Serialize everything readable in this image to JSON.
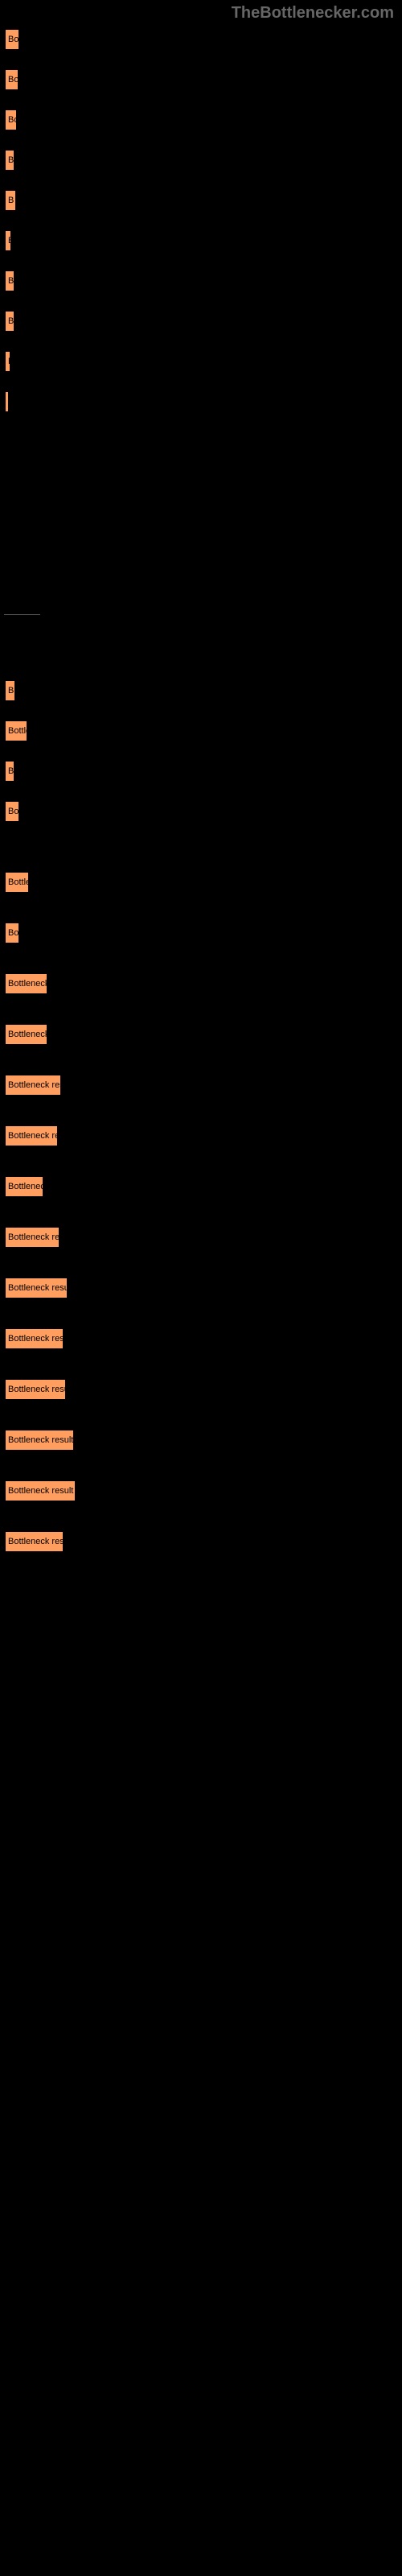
{
  "watermark": "TheBottlenecker.com",
  "section1": {
    "bars": [
      {
        "label": "Bo",
        "width": 20
      },
      {
        "label": "Bo",
        "width": 19
      },
      {
        "label": "Bo",
        "width": 17
      },
      {
        "label": "B",
        "width": 14
      },
      {
        "label": "B",
        "width": 16
      },
      {
        "label": "B",
        "width": 10
      },
      {
        "label": "B",
        "width": 14
      },
      {
        "label": "B",
        "width": 14
      },
      {
        "label": "B",
        "width": 9
      },
      {
        "label": "",
        "width": 7
      }
    ],
    "bar_color": "#ff9e5e",
    "border_color": "#000000"
  },
  "section2": {
    "bars": [
      {
        "label": "B",
        "width": 15
      },
      {
        "label": "Bottle",
        "width": 30
      },
      {
        "label": "B",
        "width": 14
      },
      {
        "label": "Bo",
        "width": 20
      }
    ],
    "bar_color": "#ff9e5e",
    "border_color": "#000000"
  },
  "section3": {
    "bars": [
      {
        "label": "Bottle",
        "width": 32
      },
      {
        "label": "Bo",
        "width": 20
      },
      {
        "label": "Bottleneck",
        "width": 55
      },
      {
        "label": "Bottleneck",
        "width": 55
      },
      {
        "label": "Bottleneck res",
        "width": 72
      },
      {
        "label": "Bottleneck re",
        "width": 68
      },
      {
        "label": "Bottlenec",
        "width": 50
      },
      {
        "label": "Bottleneck re",
        "width": 70
      },
      {
        "label": "Bottleneck resul",
        "width": 80
      },
      {
        "label": "Bottleneck res",
        "width": 75
      },
      {
        "label": "Bottleneck resu",
        "width": 78
      },
      {
        "label": "Bottleneck result",
        "width": 88
      },
      {
        "label": "Bottleneck result",
        "width": 90
      },
      {
        "label": "Bottleneck res",
        "width": 75
      }
    ],
    "bar_color": "#ff9e5e",
    "border_color": "#000000"
  },
  "background_color": "#000000"
}
